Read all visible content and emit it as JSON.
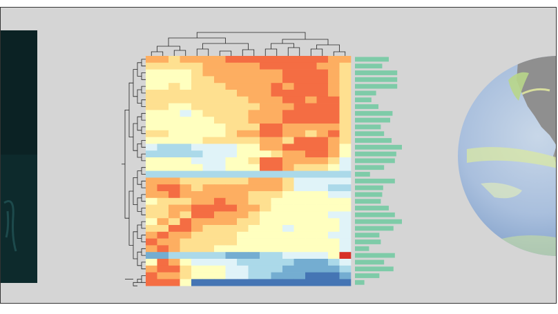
{
  "figure": {
    "panels": [
      "left-image",
      "clustered-heatmap",
      "globe"
    ]
  },
  "chart_data": {
    "type": "heatmap",
    "rows": 34,
    "cols": 18,
    "colormap": [
      "#d73027",
      "#f46d43",
      "#fdae61",
      "#fee090",
      "#ffffbf",
      "#e0f3f8",
      "#abd9e9",
      "#74add1",
      "#4575b4"
    ],
    "side_bar_color": "#7ecba8",
    "side_bar_values": [
      0.72,
      0.58,
      0.9,
      0.9,
      0.9,
      0.45,
      0.35,
      0.5,
      0.8,
      0.75,
      0.55,
      0.62,
      0.78,
      1.0,
      0.88,
      0.85,
      0.62,
      0.32,
      0.85,
      0.6,
      0.58,
      0.55,
      0.72,
      0.85,
      1.0,
      0.82,
      0.52,
      0.55,
      0.3,
      0.85,
      0.62,
      0.82,
      0.52,
      0.2
    ],
    "values": [
      [
        2,
        2,
        3,
        2,
        2,
        2,
        2,
        1,
        1,
        1,
        1,
        1,
        1,
        1,
        1,
        1,
        2,
        2
      ],
      [
        3,
        3,
        3,
        3,
        3,
        2,
        2,
        2,
        2,
        2,
        1,
        1,
        1,
        1,
        1,
        2,
        2,
        3
      ],
      [
        4,
        4,
        4,
        4,
        3,
        2,
        2,
        2,
        2,
        2,
        2,
        2,
        1,
        1,
        1,
        1,
        2,
        3
      ],
      [
        4,
        4,
        4,
        4,
        3,
        3,
        2,
        2,
        2,
        2,
        2,
        2,
        1,
        1,
        1,
        1,
        2,
        3
      ],
      [
        4,
        4,
        3,
        4,
        3,
        3,
        3,
        2,
        2,
        2,
        2,
        1,
        2,
        1,
        1,
        1,
        2,
        3
      ],
      [
        3,
        3,
        3,
        3,
        3,
        3,
        3,
        3,
        2,
        2,
        2,
        1,
        1,
        1,
        1,
        1,
        2,
        3
      ],
      [
        3,
        3,
        3,
        3,
        3,
        3,
        3,
        3,
        3,
        2,
        2,
        2,
        1,
        1,
        2,
        1,
        1,
        3
      ],
      [
        3,
        3,
        4,
        4,
        3,
        3,
        3,
        3,
        3,
        3,
        2,
        2,
        2,
        1,
        1,
        1,
        1,
        3
      ],
      [
        4,
        4,
        4,
        5,
        4,
        3,
        3,
        3,
        3,
        2,
        2,
        2,
        1,
        1,
        1,
        1,
        1,
        3
      ],
      [
        4,
        4,
        4,
        4,
        4,
        4,
        3,
        3,
        3,
        2,
        2,
        2,
        1,
        1,
        1,
        1,
        1,
        3
      ],
      [
        4,
        4,
        4,
        4,
        4,
        4,
        4,
        3,
        3,
        3,
        1,
        1,
        2,
        2,
        2,
        2,
        2,
        3
      ],
      [
        3,
        3,
        4,
        4,
        4,
        4,
        4,
        3,
        2,
        2,
        1,
        1,
        2,
        2,
        3,
        2,
        1,
        3
      ],
      [
        4,
        4,
        4,
        4,
        4,
        3,
        3,
        3,
        3,
        3,
        2,
        2,
        3,
        1,
        1,
        1,
        2,
        3
      ],
      [
        5,
        6,
        6,
        6,
        5,
        5,
        5,
        5,
        4,
        4,
        2,
        2,
        1,
        1,
        1,
        1,
        2,
        4
      ],
      [
        6,
        6,
        6,
        6,
        6,
        5,
        5,
        5,
        4,
        4,
        4,
        3,
        2,
        2,
        1,
        1,
        2,
        4
      ],
      [
        4,
        4,
        4,
        4,
        5,
        5,
        5,
        4,
        4,
        3,
        1,
        1,
        2,
        2,
        2,
        2,
        3,
        5
      ],
      [
        4,
        4,
        4,
        4,
        4,
        5,
        5,
        4,
        4,
        4,
        1,
        1,
        2,
        3,
        3,
        3,
        4,
        5
      ],
      [
        6,
        6,
        6,
        6,
        6,
        6,
        6,
        6,
        6,
        6,
        6,
        6,
        6,
        6,
        6,
        6,
        6,
        6
      ],
      [
        2,
        2,
        2,
        3,
        3,
        3,
        3,
        3,
        3,
        2,
        2,
        2,
        3,
        5,
        5,
        5,
        5,
        5
      ],
      [
        2,
        1,
        1,
        2,
        3,
        2,
        2,
        2,
        2,
        2,
        2,
        2,
        3,
        5,
        5,
        5,
        6,
        6
      ],
      [
        2,
        2,
        1,
        2,
        2,
        2,
        2,
        2,
        2,
        3,
        3,
        3,
        4,
        4,
        4,
        4,
        5,
        5
      ],
      [
        4,
        3,
        3,
        3,
        2,
        2,
        1,
        2,
        2,
        3,
        3,
        4,
        4,
        4,
        4,
        4,
        4,
        4
      ],
      [
        3,
        3,
        2,
        2,
        1,
        1,
        1,
        1,
        2,
        2,
        3,
        4,
        4,
        4,
        4,
        4,
        4,
        4
      ],
      [
        3,
        3,
        2,
        3,
        1,
        1,
        2,
        2,
        2,
        3,
        4,
        4,
        4,
        4,
        4,
        4,
        5,
        5
      ],
      [
        4,
        2,
        3,
        1,
        2,
        2,
        2,
        2,
        3,
        3,
        4,
        4,
        4,
        4,
        4,
        4,
        4,
        5
      ],
      [
        3,
        3,
        1,
        1,
        2,
        3,
        3,
        3,
        3,
        4,
        4,
        4,
        5,
        4,
        4,
        4,
        4,
        5
      ],
      [
        2,
        1,
        2,
        2,
        3,
        3,
        3,
        3,
        4,
        4,
        4,
        4,
        4,
        4,
        4,
        4,
        5,
        5
      ],
      [
        1,
        2,
        2,
        3,
        3,
        3,
        3,
        3,
        4,
        4,
        4,
        4,
        4,
        4,
        4,
        4,
        4,
        5
      ],
      [
        2,
        1,
        2,
        3,
        3,
        3,
        4,
        4,
        4,
        4,
        4,
        4,
        4,
        4,
        4,
        4,
        4,
        5
      ],
      [
        7,
        7,
        6,
        6,
        6,
        6,
        6,
        7,
        7,
        7,
        6,
        6,
        5,
        5,
        5,
        5,
        4,
        0
      ],
      [
        4,
        1,
        2,
        4,
        5,
        5,
        5,
        5,
        6,
        6,
        6,
        6,
        6,
        7,
        7,
        7,
        6,
        5
      ],
      [
        2,
        1,
        1,
        3,
        4,
        4,
        4,
        5,
        5,
        6,
        6,
        6,
        7,
        7,
        7,
        7,
        7,
        6
      ],
      [
        1,
        2,
        2,
        3,
        4,
        4,
        4,
        5,
        5,
        6,
        6,
        7,
        7,
        7,
        8,
        8,
        8,
        7
      ],
      [
        1,
        1,
        1,
        4,
        8,
        8,
        8,
        8,
        8,
        8,
        8,
        8,
        8,
        8,
        8,
        8,
        8,
        8
      ]
    ]
  }
}
